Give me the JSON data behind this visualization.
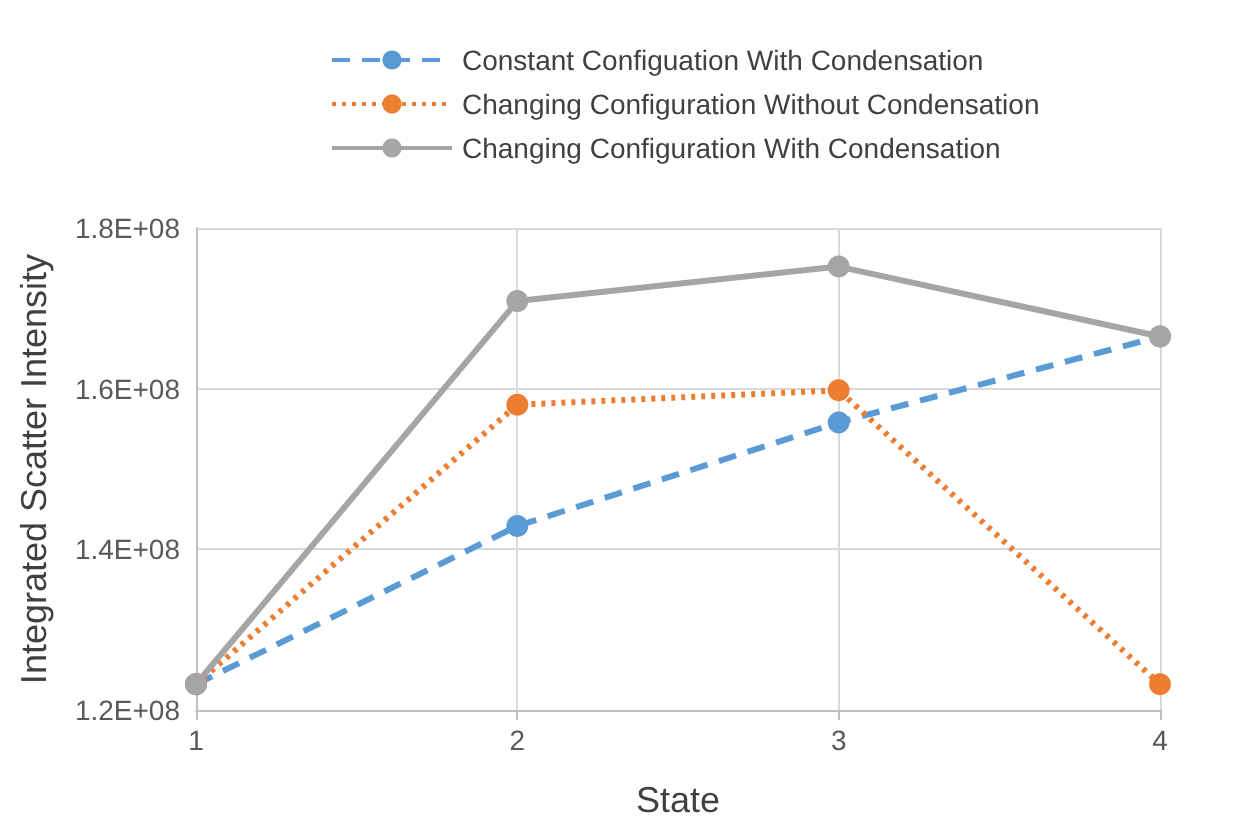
{
  "chart_data": {
    "type": "line",
    "xlabel": "State",
    "ylabel": "Integrated Scatter Intensity",
    "categories": [
      "1",
      "2",
      "3",
      "4"
    ],
    "series": [
      {
        "name": "Constant Configuation With Condensation",
        "color": "#5b9bd5",
        "line_style": "dashed",
        "values": [
          123200000,
          142900000,
          155800000,
          166500000
        ]
      },
      {
        "name": "Changing Configuration Without Condensation",
        "color": "#ed7d31",
        "line_style": "dotted",
        "values": [
          123200000,
          158000000,
          159800000,
          123200000
        ]
      },
      {
        "name": "Changing Configuration With Condensation",
        "color": "#a5a5a5",
        "line_style": "solid",
        "values": [
          123200000,
          170900000,
          175200000,
          166500000
        ]
      }
    ],
    "ylim": [
      120000000,
      180000000
    ],
    "yticks": [
      {
        "value": 120000000,
        "label": "1.2E+08"
      },
      {
        "value": 140000000,
        "label": "1.4E+08"
      },
      {
        "value": 160000000,
        "label": "1.6E+08"
      },
      {
        "value": 180000000,
        "label": "1.8E+08"
      }
    ],
    "grid": true,
    "legend": "top",
    "marker": "circle"
  }
}
